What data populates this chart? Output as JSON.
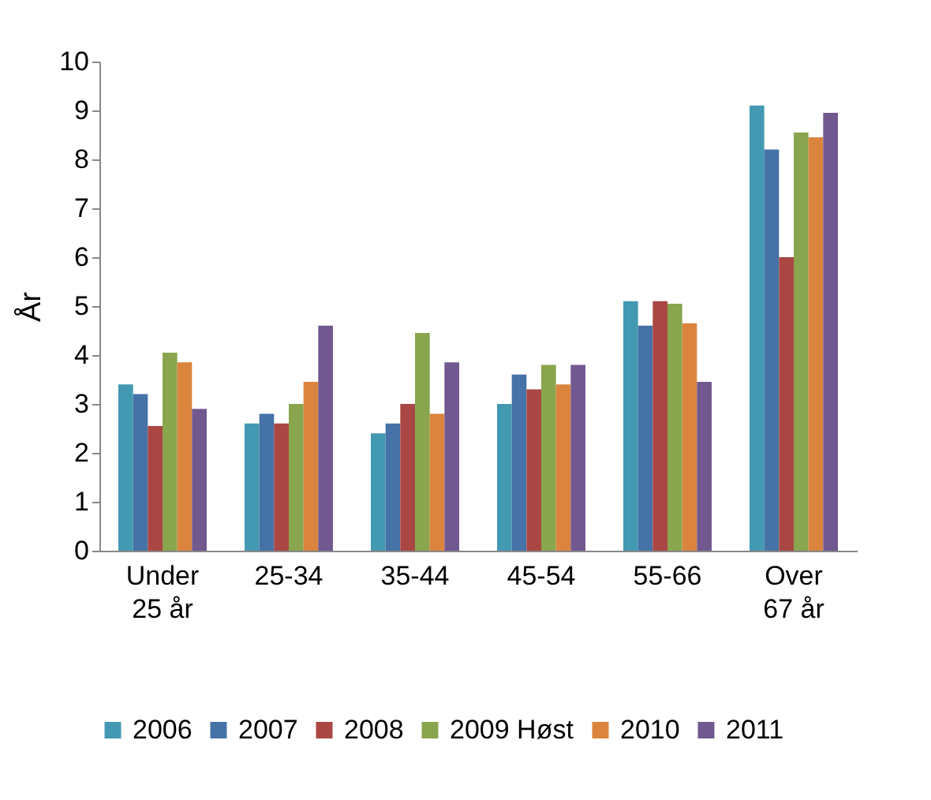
{
  "chart_data": {
    "type": "bar",
    "ylabel": "År",
    "categories": [
      "Under 25 år",
      "25-34",
      "35-44",
      "45-54",
      "55-66",
      "Over 67 år"
    ],
    "series": [
      {
        "name": "2006",
        "color": "#4399b1",
        "values": [
          3.4,
          2.6,
          2.4,
          3.0,
          5.1,
          9.1
        ]
      },
      {
        "name": "2007",
        "color": "#4572a7",
        "values": [
          3.2,
          2.8,
          2.6,
          3.6,
          4.6,
          8.2
        ]
      },
      {
        "name": "2008",
        "color": "#aa4643",
        "values": [
          2.55,
          2.6,
          3.0,
          3.3,
          5.1,
          6.0
        ]
      },
      {
        "name": "2009 Høst",
        "color": "#89a54e",
        "values": [
          4.05,
          3.0,
          4.45,
          3.8,
          5.05,
          8.55
        ]
      },
      {
        "name": "2010",
        "color": "#db843d",
        "values": [
          3.85,
          3.45,
          2.8,
          3.4,
          4.65,
          8.45
        ]
      },
      {
        "name": "2011",
        "color": "#71588f",
        "values": [
          2.9,
          4.6,
          3.85,
          3.8,
          3.45,
          8.95
        ]
      }
    ],
    "ylim": [
      0,
      10
    ],
    "yticks": [
      0,
      1,
      2,
      3,
      4,
      5,
      6,
      7,
      8,
      9,
      10
    ],
    "grid": false,
    "legend": "bottom"
  }
}
